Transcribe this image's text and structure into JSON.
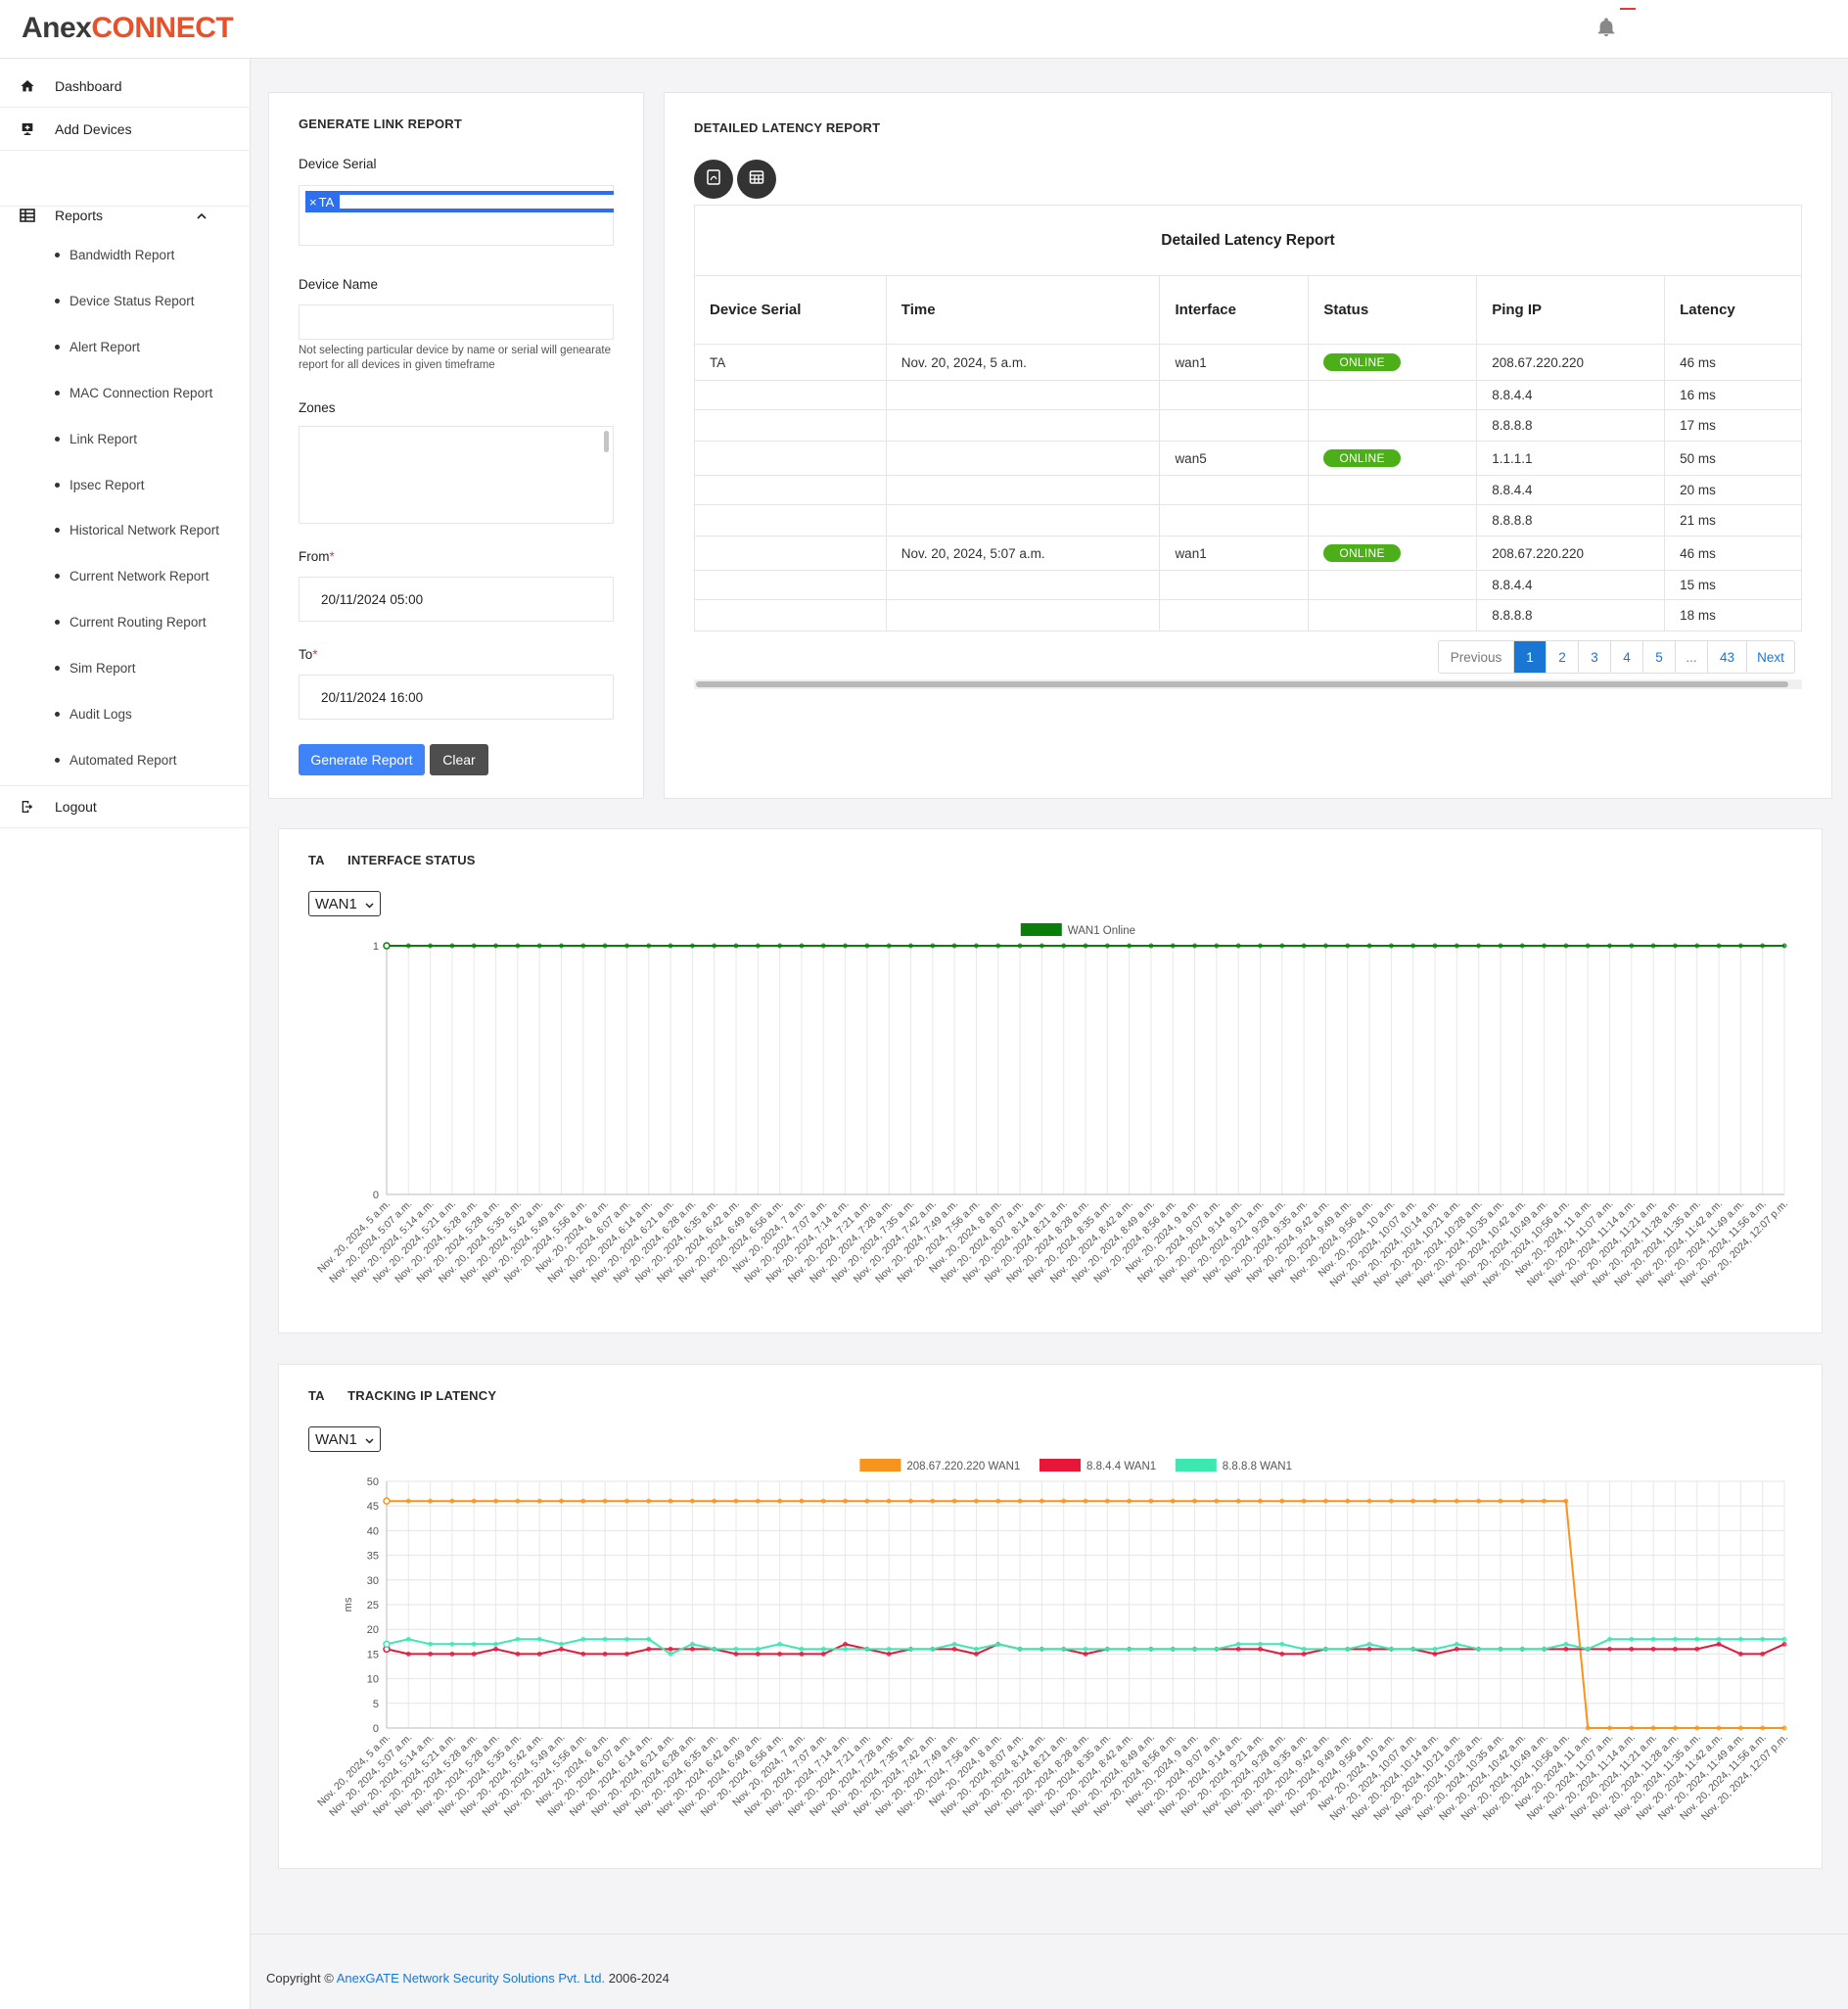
{
  "brand": {
    "name_part1": "Anex",
    "name_part2": "CONNECT"
  },
  "sidebar": {
    "dashboard": "Dashboard",
    "add_devices": "Add Devices",
    "reports": "Reports",
    "report_items": [
      "Bandwidth Report",
      "Device Status Report",
      "Alert Report",
      "MAC Connection Report",
      "Link Report",
      "Ipsec Report",
      "Historical Network Report",
      "Current Network Report",
      "Current Routing Report",
      "Sim Report",
      "Audit Logs",
      "Automated Report"
    ],
    "logout": "Logout"
  },
  "form": {
    "title": "GENERATE LINK REPORT",
    "device_serial_label": "Device Serial",
    "device_serial_tag": "TA",
    "device_name_label": "Device Name",
    "hint": "Not selecting particular device by name or serial will genearate report for all devices in given timeframe",
    "zones_label": "Zones",
    "from_label": "From",
    "from_value": "20/11/2024 05:00",
    "to_label": "To",
    "to_value": "20/11/2024 16:00",
    "generate_btn": "Generate Report",
    "clear_btn": "Clear",
    "required_mark": "*"
  },
  "latency_report": {
    "title": "DETAILED LATENCY REPORT",
    "table_caption": "Detailed Latency Report",
    "headers": [
      "Device Serial",
      "Time",
      "Interface",
      "Status",
      "Ping IP",
      "Latency"
    ],
    "rows": [
      [
        "TA",
        "Nov. 20, 2024, 5 a.m.",
        "wan1",
        "ONLINE",
        "208.67.220.220",
        "46 ms"
      ],
      [
        "",
        "",
        "",
        "",
        "8.8.4.4",
        "16 ms"
      ],
      [
        "",
        "",
        "",
        "",
        "8.8.8.8",
        "17 ms"
      ],
      [
        "",
        "",
        "wan5",
        "ONLINE",
        "1.1.1.1",
        "50 ms"
      ],
      [
        "",
        "",
        "",
        "",
        "8.8.4.4",
        "20 ms"
      ],
      [
        "",
        "",
        "",
        "",
        "8.8.8.8",
        "21 ms"
      ],
      [
        "",
        "Nov. 20, 2024, 5:07 a.m.",
        "wan1",
        "ONLINE",
        "208.67.220.220",
        "46 ms"
      ],
      [
        "",
        "",
        "",
        "",
        "8.8.4.4",
        "15 ms"
      ],
      [
        "",
        "",
        "",
        "",
        "8.8.8.8",
        "18 ms"
      ]
    ],
    "pagination": {
      "previous": "Previous",
      "pages": [
        "1",
        "2",
        "3",
        "4",
        "5",
        "...",
        "43"
      ],
      "next": "Next",
      "active": "1"
    }
  },
  "interface_status": {
    "title_prefix": "TA",
    "title_suffix": "INTERFACE STATUS",
    "select_value": "WAN1"
  },
  "tracking_latency": {
    "title_prefix": "TA",
    "title_suffix": "TRACKING IP LATENCY",
    "select_value": "WAN1"
  },
  "chart_data": [
    {
      "type": "line",
      "title": "",
      "xlabel": "",
      "ylabel": "",
      "ylim": [
        0,
        1
      ],
      "yticks": [
        0,
        1
      ],
      "legend": "top-center",
      "x": [
        "Nov. 20, 2024, 5 a.m.",
        "Nov. 20, 2024, 5:07 a.m.",
        "Nov. 20, 2024, 5:14 a.m.",
        "Nov. 20, 2024, 5:21 a.m.",
        "Nov. 20, 2024, 5:28 a.m.",
        "Nov. 20, 2024, 5:28 a.m.",
        "Nov. 20, 2024, 5:35 a.m.",
        "Nov. 20, 2024, 5:42 a.m.",
        "Nov. 20, 2024, 5:49 a.m.",
        "Nov. 20, 2024, 5:56 a.m.",
        "Nov. 20, 2024, 6 a.m.",
        "Nov. 20, 2024, 6:07 a.m.",
        "Nov. 20, 2024, 6:14 a.m.",
        "Nov. 20, 2024, 6:21 a.m.",
        "Nov. 20, 2024, 6:28 a.m.",
        "Nov. 20, 2024, 6:35 a.m.",
        "Nov. 20, 2024, 6:42 a.m.",
        "Nov. 20, 2024, 6:49 a.m.",
        "Nov. 20, 2024, 6:56 a.m.",
        "Nov. 20, 2024, 7 a.m.",
        "Nov. 20, 2024, 7:07 a.m.",
        "Nov. 20, 2024, 7:14 a.m.",
        "Nov. 20, 2024, 7:21 a.m.",
        "Nov. 20, 2024, 7:28 a.m.",
        "Nov. 20, 2024, 7:35 a.m.",
        "Nov. 20, 2024, 7:42 a.m.",
        "Nov. 20, 2024, 7:49 a.m.",
        "Nov. 20, 2024, 7:56 a.m.",
        "Nov. 20, 2024, 8 a.m.",
        "Nov. 20, 2024, 8:07 a.m.",
        "Nov. 20, 2024, 8:14 a.m.",
        "Nov. 20, 2024, 8:21 a.m.",
        "Nov. 20, 2024, 8:28 a.m.",
        "Nov. 20, 2024, 8:35 a.m.",
        "Nov. 20, 2024, 8:42 a.m.",
        "Nov. 20, 2024, 8:49 a.m.",
        "Nov. 20, 2024, 8:56 a.m.",
        "Nov. 20, 2024, 9 a.m.",
        "Nov. 20, 2024, 9:07 a.m.",
        "Nov. 20, 2024, 9:14 a.m.",
        "Nov. 20, 2024, 9:21 a.m.",
        "Nov. 20, 2024, 9:28 a.m.",
        "Nov. 20, 2024, 9:35 a.m.",
        "Nov. 20, 2024, 9:42 a.m.",
        "Nov. 20, 2024, 9:49 a.m.",
        "Nov. 20, 2024, 9:56 a.m.",
        "Nov. 20, 2024, 10 a.m.",
        "Nov. 20, 2024, 10:07 a.m.",
        "Nov. 20, 2024, 10:14 a.m.",
        "Nov. 20, 2024, 10:21 a.m.",
        "Nov. 20, 2024, 10:28 a.m.",
        "Nov. 20, 2024, 10:35 a.m.",
        "Nov. 20, 2024, 10:42 a.m.",
        "Nov. 20, 2024, 10:49 a.m.",
        "Nov. 20, 2024, 10:56 a.m.",
        "Nov. 20, 2024, 11 a.m.",
        "Nov. 20, 2024, 11:07 a.m.",
        "Nov. 20, 2024, 11:14 a.m.",
        "Nov. 20, 2024, 11:21 a.m.",
        "Nov. 20, 2024, 11:28 a.m.",
        "Nov. 20, 2024, 11:35 a.m.",
        "Nov. 20, 2024, 11:42 a.m.",
        "Nov. 20, 2024, 11:49 a.m.",
        "Nov. 20, 2024, 11:56 a.m.",
        "Nov. 20, 2024, 12:07 p.m."
      ],
      "series": [
        {
          "name": "WAN1 Online",
          "color": "#0a7d0a",
          "values": [
            1,
            1,
            1,
            1,
            1,
            1,
            1,
            1,
            1,
            1,
            1,
            1,
            1,
            1,
            1,
            1,
            1,
            1,
            1,
            1,
            1,
            1,
            1,
            1,
            1,
            1,
            1,
            1,
            1,
            1,
            1,
            1,
            1,
            1,
            1,
            1,
            1,
            1,
            1,
            1,
            1,
            1,
            1,
            1,
            1,
            1,
            1,
            1,
            1,
            1,
            1,
            1,
            1,
            1,
            1,
            1,
            1,
            1,
            1,
            1,
            1,
            1,
            1,
            1,
            1
          ]
        }
      ]
    },
    {
      "type": "line",
      "title": "",
      "xlabel": "",
      "ylabel": "ms",
      "ylim": [
        0,
        50
      ],
      "yticks": [
        0,
        5,
        10,
        15,
        20,
        25,
        30,
        35,
        40,
        45,
        50
      ],
      "legend": "top-center",
      "x": [
        "Nov. 20, 2024, 5 a.m.",
        "Nov. 20, 2024, 5:07 a.m.",
        "Nov. 20, 2024, 5:14 a.m.",
        "Nov. 20, 2024, 5:21 a.m.",
        "Nov. 20, 2024, 5:28 a.m.",
        "Nov. 20, 2024, 5:28 a.m.",
        "Nov. 20, 2024, 5:35 a.m.",
        "Nov. 20, 2024, 5:42 a.m.",
        "Nov. 20, 2024, 5:49 a.m.",
        "Nov. 20, 2024, 5:56 a.m.",
        "Nov. 20, 2024, 6 a.m.",
        "Nov. 20, 2024, 6:07 a.m.",
        "Nov. 20, 2024, 6:14 a.m.",
        "Nov. 20, 2024, 6:21 a.m.",
        "Nov. 20, 2024, 6:28 a.m.",
        "Nov. 20, 2024, 6:35 a.m.",
        "Nov. 20, 2024, 6:42 a.m.",
        "Nov. 20, 2024, 6:49 a.m.",
        "Nov. 20, 2024, 6:56 a.m.",
        "Nov. 20, 2024, 7 a.m.",
        "Nov. 20, 2024, 7:07 a.m.",
        "Nov. 20, 2024, 7:14 a.m.",
        "Nov. 20, 2024, 7:21 a.m.",
        "Nov. 20, 2024, 7:28 a.m.",
        "Nov. 20, 2024, 7:35 a.m.",
        "Nov. 20, 2024, 7:42 a.m.",
        "Nov. 20, 2024, 7:49 a.m.",
        "Nov. 20, 2024, 7:56 a.m.",
        "Nov. 20, 2024, 8 a.m.",
        "Nov. 20, 2024, 8:07 a.m.",
        "Nov. 20, 2024, 8:14 a.m.",
        "Nov. 20, 2024, 8:21 a.m.",
        "Nov. 20, 2024, 8:28 a.m.",
        "Nov. 20, 2024, 8:35 a.m.",
        "Nov. 20, 2024, 8:42 a.m.",
        "Nov. 20, 2024, 8:49 a.m.",
        "Nov. 20, 2024, 8:56 a.m.",
        "Nov. 20, 2024, 9 a.m.",
        "Nov. 20, 2024, 9:07 a.m.",
        "Nov. 20, 2024, 9:14 a.m.",
        "Nov. 20, 2024, 9:21 a.m.",
        "Nov. 20, 2024, 9:28 a.m.",
        "Nov. 20, 2024, 9:35 a.m.",
        "Nov. 20, 2024, 9:42 a.m.",
        "Nov. 20, 2024, 9:49 a.m.",
        "Nov. 20, 2024, 9:56 a.m.",
        "Nov. 20, 2024, 10 a.m.",
        "Nov. 20, 2024, 10:07 a.m.",
        "Nov. 20, 2024, 10:14 a.m.",
        "Nov. 20, 2024, 10:21 a.m.",
        "Nov. 20, 2024, 10:28 a.m.",
        "Nov. 20, 2024, 10:35 a.m.",
        "Nov. 20, 2024, 10:42 a.m.",
        "Nov. 20, 2024, 10:49 a.m.",
        "Nov. 20, 2024, 10:56 a.m.",
        "Nov. 20, 2024, 11 a.m.",
        "Nov. 20, 2024, 11:07 a.m.",
        "Nov. 20, 2024, 11:14 a.m.",
        "Nov. 20, 2024, 11:21 a.m.",
        "Nov. 20, 2024, 11:28 a.m.",
        "Nov. 20, 2024, 11:35 a.m.",
        "Nov. 20, 2024, 11:42 a.m.",
        "Nov. 20, 2024, 11:49 a.m.",
        "Nov. 20, 2024, 11:56 a.m.",
        "Nov. 20, 2024, 12:07 p.m."
      ],
      "series": [
        {
          "name": "208.67.220.220 WAN1",
          "color": "#f7941d",
          "values": [
            46,
            46,
            46,
            46,
            46,
            46,
            46,
            46,
            46,
            46,
            46,
            46,
            46,
            46,
            46,
            46,
            46,
            46,
            46,
            46,
            46,
            46,
            46,
            46,
            46,
            46,
            46,
            46,
            46,
            46,
            46,
            46,
            46,
            46,
            46,
            46,
            46,
            46,
            46,
            46,
            46,
            46,
            46,
            46,
            46,
            46,
            46,
            46,
            46,
            46,
            46,
            46,
            46,
            46,
            46,
            0,
            0,
            0,
            0,
            0,
            0,
            0,
            0,
            0,
            0
          ]
        },
        {
          "name": "8.8.4.4 WAN1",
          "color": "#e8173a",
          "values": [
            16,
            15,
            15,
            15,
            15,
            16,
            15,
            15,
            16,
            15,
            15,
            15,
            16,
            16,
            16,
            16,
            15,
            15,
            15,
            15,
            15,
            17,
            16,
            15,
            16,
            16,
            16,
            15,
            17,
            16,
            16,
            16,
            15,
            16,
            16,
            16,
            16,
            16,
            16,
            16,
            16,
            15,
            15,
            16,
            16,
            16,
            16,
            16,
            15,
            16,
            16,
            16,
            16,
            16,
            16,
            16,
            16,
            16,
            16,
            16,
            16,
            17,
            15,
            15,
            17
          ]
        },
        {
          "name": "8.8.8.8 WAN1",
          "color": "#3be8b0",
          "values": [
            17,
            18,
            17,
            17,
            17,
            17,
            18,
            18,
            17,
            18,
            18,
            18,
            18,
            15,
            17,
            16,
            16,
            16,
            17,
            16,
            16,
            16,
            16,
            16,
            16,
            16,
            17,
            16,
            17,
            16,
            16,
            16,
            16,
            16,
            16,
            16,
            16,
            16,
            16,
            17,
            17,
            17,
            16,
            16,
            16,
            17,
            16,
            16,
            16,
            17,
            16,
            16,
            16,
            16,
            17,
            16,
            18,
            18,
            18,
            18,
            18,
            18,
            18,
            18,
            18
          ]
        }
      ]
    }
  ],
  "footer": {
    "prefix": "Copyright ©",
    "company": "AnexGATE Network Security Solutions Pvt. Ltd.",
    "suffix": "2006-2024"
  }
}
